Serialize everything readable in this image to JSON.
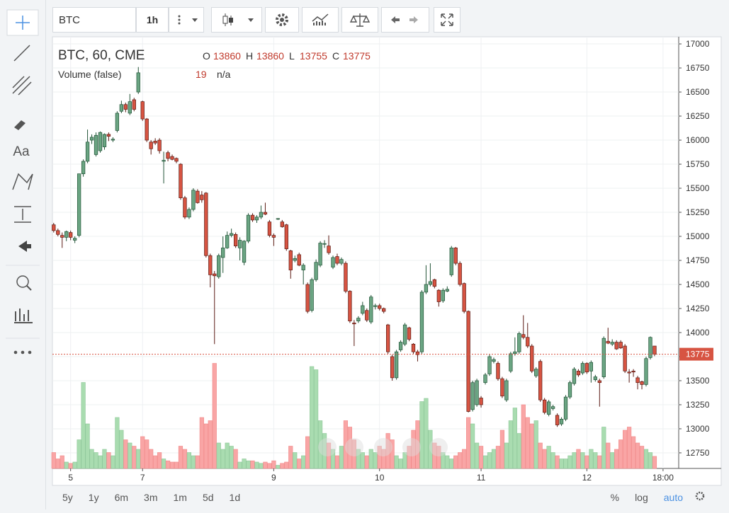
{
  "toolbar": {
    "symbol": "BTC",
    "interval": "1h",
    "text_tool": "Aa"
  },
  "chart_data": {
    "type": "candlestick",
    "title": "BTC, 60, CME",
    "ohlc_letters": [
      "O",
      "H",
      "L",
      "C"
    ],
    "volume_title": "Volume (false)",
    "volume_extra": "n/a",
    "up_color": "#6ba583",
    "down_color": "#d75442",
    "up_volume_color": "#a9dcb0",
    "down_volume_color": "#f9a5a5",
    "xlim": [
      -0.3,
      147.7
    ],
    "xticks": [
      {
        "value": 4,
        "label": "5"
      },
      {
        "value": 21,
        "label": "7"
      },
      {
        "value": 52,
        "label": "9"
      },
      {
        "value": 77,
        "label": "10"
      },
      {
        "value": 101,
        "label": "11"
      },
      {
        "value": 126,
        "label": "12"
      },
      {
        "value": 144,
        "label": "18:00"
      }
    ],
    "ylim": [
      12588,
      17074
    ],
    "yticks": [
      17000,
      16750,
      16500,
      16250,
      16000,
      15750,
      15500,
      15250,
      15000,
      14750,
      14500,
      14250,
      14000,
      13750,
      13500,
      13250,
      13000,
      12750
    ],
    "grid": true,
    "candles": [
      [
        15120,
        15140,
        15040,
        15060
      ],
      [
        15060,
        15080,
        15000,
        15020
      ],
      [
        15010,
        15040,
        14880,
        14990
      ],
      [
        14990,
        15060,
        14950,
        15050
      ],
      [
        15040,
        15060,
        14960,
        14990
      ],
      [
        14960,
        15000,
        14930,
        14980
      ],
      [
        15010,
        15650,
        14990,
        15650
      ],
      [
        15650,
        15800,
        15620,
        15780
      ],
      [
        15780,
        16110,
        15760,
        15980
      ],
      [
        16000,
        16060,
        15960,
        16030
      ],
      [
        15850,
        16080,
        15830,
        16050
      ],
      [
        15890,
        16090,
        15870,
        16080
      ],
      [
        15930,
        16070,
        15900,
        16060
      ],
      [
        16060,
        16080,
        15990,
        16040
      ],
      [
        16000,
        16030,
        15980,
        16010
      ],
      [
        16100,
        16300,
        16080,
        16280
      ],
      [
        16300,
        16410,
        16280,
        16370
      ],
      [
        16370,
        16390,
        16290,
        16320
      ],
      [
        16280,
        16480,
        16260,
        16400
      ],
      [
        16420,
        16440,
        16300,
        16320
      ],
      [
        16500,
        16760,
        16480,
        16700
      ],
      [
        16400,
        16410,
        16200,
        16220
      ],
      [
        16220,
        16230,
        15980,
        16000
      ],
      [
        15980,
        16000,
        15850,
        15910
      ],
      [
        15990,
        16020,
        15950,
        15970
      ],
      [
        16000,
        16020,
        15860,
        15890
      ],
      [
        15780,
        15880,
        15550,
        15790
      ],
      [
        15870,
        15890,
        15780,
        15810
      ],
      [
        15830,
        15850,
        15790,
        15800
      ],
      [
        15810,
        15820,
        15760,
        15780
      ],
      [
        15750,
        15760,
        15380,
        15400
      ],
      [
        15400,
        15420,
        15180,
        15200
      ],
      [
        15200,
        15300,
        15180,
        15280
      ],
      [
        15280,
        15500,
        15260,
        15480
      ],
      [
        15470,
        15490,
        15340,
        15350
      ],
      [
        15430,
        15470,
        15350,
        15380
      ],
      [
        15450,
        15460,
        14780,
        14800
      ],
      [
        14800,
        14820,
        14470,
        14600
      ],
      [
        14610,
        14640,
        13880,
        14590
      ],
      [
        14580,
        14820,
        14560,
        14800
      ],
      [
        14780,
        15000,
        14620,
        14880
      ],
      [
        14880,
        15050,
        14870,
        15010
      ],
      [
        15010,
        15080,
        14990,
        15030
      ],
      [
        15020,
        15040,
        14880,
        14900
      ],
      [
        14880,
        14990,
        14750,
        14960
      ],
      [
        14730,
        14960,
        14700,
        14950
      ],
      [
        14950,
        15240,
        14930,
        15220
      ],
      [
        15220,
        15240,
        15150,
        15170
      ],
      [
        15170,
        15220,
        15140,
        15200
      ],
      [
        15200,
        15320,
        15180,
        15250
      ],
      [
        15250,
        15350,
        15220,
        15230
      ],
      [
        15150,
        15170,
        14990,
        15010
      ],
      [
        15010,
        15030,
        14900,
        14990
      ],
      [
        15180,
        15190,
        15170,
        15185
      ],
      [
        15150,
        15170,
        15090,
        15100
      ],
      [
        15120,
        15130,
        14850,
        14870
      ],
      [
        14850,
        14860,
        14560,
        14650
      ],
      [
        14750,
        14800,
        14730,
        14770
      ],
      [
        14810,
        14830,
        14690,
        14700
      ],
      [
        14650,
        14720,
        14500,
        14700
      ],
      [
        14500,
        14520,
        14200,
        14220
      ],
      [
        14230,
        14570,
        14210,
        14550
      ],
      [
        14550,
        14760,
        14530,
        14730
      ],
      [
        14700,
        14950,
        14680,
        14930
      ],
      [
        14920,
        14960,
        14880,
        14925
      ],
      [
        14900,
        15010,
        14810,
        14830
      ],
      [
        14680,
        14800,
        14660,
        14780
      ],
      [
        14790,
        14820,
        14700,
        14720
      ],
      [
        14720,
        14780,
        14700,
        14760
      ],
      [
        14720,
        14740,
        14410,
        14430
      ],
      [
        14430,
        14440,
        14100,
        14120
      ],
      [
        14100,
        14130,
        13860,
        14090
      ],
      [
        14120,
        14170,
        14100,
        14150
      ],
      [
        14200,
        14320,
        14180,
        14280
      ],
      [
        14230,
        14250,
        14110,
        14130
      ],
      [
        14110,
        14390,
        14090,
        14370
      ],
      [
        14270,
        14300,
        14240,
        14280
      ],
      [
        14280,
        14300,
        14230,
        14250
      ],
      [
        14250,
        14260,
        14200,
        14220
      ],
      [
        14080,
        14090,
        13780,
        13800
      ],
      [
        13750,
        13770,
        13500,
        13530
      ],
      [
        13530,
        13820,
        13510,
        13800
      ],
      [
        13820,
        13920,
        13800,
        13900
      ],
      [
        13880,
        14100,
        13860,
        14080
      ],
      [
        14050,
        14060,
        13910,
        13930
      ],
      [
        13880,
        13890,
        13780,
        13800
      ],
      [
        13800,
        13820,
        13700,
        13770
      ],
      [
        13800,
        14440,
        13780,
        14420
      ],
      [
        14420,
        14700,
        14400,
        14500
      ],
      [
        14500,
        14720,
        14480,
        14530
      ],
      [
        14550,
        14560,
        14460,
        14480
      ],
      [
        14440,
        14450,
        14270,
        14320
      ],
      [
        14330,
        14460,
        14310,
        14440
      ],
      [
        14430,
        14480,
        14420,
        14450
      ],
      [
        14600,
        14900,
        14580,
        14880
      ],
      [
        14880,
        14890,
        14700,
        14720
      ],
      [
        14720,
        14740,
        14480,
        14500
      ],
      [
        14510,
        14520,
        14200,
        14220
      ],
      [
        14220,
        14230,
        13170,
        13180
      ],
      [
        13200,
        13500,
        13180,
        13480
      ],
      [
        13250,
        13520,
        13230,
        13500
      ],
      [
        13320,
        13340,
        13220,
        13250
      ],
      [
        13480,
        13580,
        13460,
        13560
      ],
      [
        13570,
        13770,
        13550,
        13750
      ],
      [
        13700,
        13740,
        13680,
        13720
      ],
      [
        13680,
        13700,
        13500,
        13520
      ],
      [
        13520,
        13540,
        13320,
        13340
      ],
      [
        13300,
        13520,
        13280,
        13500
      ],
      [
        13600,
        13800,
        13580,
        13780
      ],
      [
        13780,
        13950,
        13760,
        13800
      ],
      [
        13800,
        14010,
        13780,
        13990
      ],
      [
        13980,
        14180,
        13930,
        13950
      ],
      [
        13950,
        14100,
        13840,
        13860
      ],
      [
        13860,
        13880,
        13580,
        13600
      ],
      [
        13550,
        13640,
        13530,
        13620
      ],
      [
        13700,
        13720,
        13280,
        13300
      ],
      [
        13300,
        13320,
        13150,
        13170
      ],
      [
        13150,
        13300,
        13130,
        13280
      ],
      [
        13210,
        13250,
        13190,
        13230
      ],
      [
        13140,
        13160,
        13020,
        13040
      ],
      [
        13050,
        13120,
        13030,
        13100
      ],
      [
        13100,
        13350,
        13080,
        13330
      ],
      [
        13330,
        13500,
        13310,
        13480
      ],
      [
        13470,
        13640,
        13450,
        13620
      ],
      [
        13600,
        13620,
        13540,
        13560
      ],
      [
        13580,
        13700,
        13560,
        13680
      ],
      [
        13680,
        13690,
        13570,
        13590
      ],
      [
        13600,
        13710,
        13480,
        13690
      ],
      [
        13510,
        13560,
        13490,
        13540
      ],
      [
        13500,
        13520,
        13230,
        13480
      ],
      [
        13540,
        13960,
        13520,
        13940
      ],
      [
        13910,
        14050,
        13880,
        13890
      ],
      [
        13880,
        13930,
        13860,
        13900
      ],
      [
        13900,
        13920,
        13820,
        13830
      ],
      [
        13900,
        13920,
        13830,
        13840
      ],
      [
        13860,
        13880,
        13580,
        13600
      ],
      [
        13590,
        13620,
        13480,
        13580
      ],
      [
        13600,
        13620,
        13540,
        13590
      ],
      [
        13530,
        13550,
        13410,
        13480
      ],
      [
        13490,
        13500,
        13410,
        13460
      ],
      [
        13460,
        13750,
        13440,
        13730
      ],
      [
        13740,
        13960,
        13720,
        13950
      ],
      [
        13860,
        13860,
        13755,
        13775
      ]
    ],
    "volume": [
      25,
      15,
      20,
      10,
      8,
      10,
      45,
      135,
      70,
      30,
      25,
      20,
      30,
      25,
      20,
      80,
      60,
      45,
      40,
      35,
      30,
      50,
      45,
      30,
      20,
      25,
      15,
      12,
      10,
      10,
      35,
      30,
      25,
      20,
      20,
      80,
      70,
      75,
      165,
      40,
      30,
      40,
      35,
      30,
      10,
      15,
      12,
      12,
      10,
      8,
      10,
      8,
      12,
      5,
      8,
      10,
      35,
      25,
      15,
      20,
      50,
      160,
      155,
      75,
      55,
      40,
      30,
      20,
      35,
      75,
      65,
      45,
      30,
      25,
      20,
      30,
      25,
      35,
      30,
      55,
      45,
      20,
      15,
      25,
      35,
      60,
      75,
      105,
      110,
      60,
      40,
      35,
      25,
      20,
      15,
      20,
      25,
      30,
      80,
      70,
      40,
      35,
      20,
      25,
      30,
      35,
      60,
      40,
      75,
      95,
      55,
      100,
      80,
      70,
      75,
      40,
      30,
      35,
      25,
      20,
      15,
      15,
      20,
      25,
      30,
      25,
      20,
      30,
      25,
      20,
      65,
      40,
      25,
      30,
      45,
      60,
      65,
      50,
      40,
      35,
      30,
      25,
      19
    ]
  },
  "bottom_bar": {
    "ranges": [
      "5y",
      "1y",
      "6m",
      "3m",
      "1m",
      "5d",
      "1d"
    ],
    "scale_buttons": [
      "%",
      "log",
      "auto"
    ]
  }
}
